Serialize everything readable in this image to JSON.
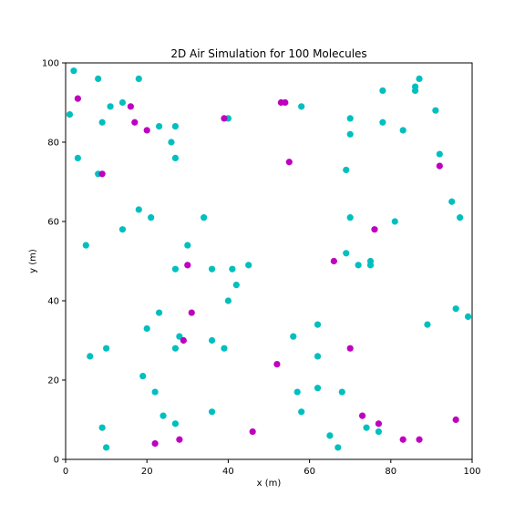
{
  "chart_data": {
    "type": "scatter",
    "title": "2D Air Simulation for 100 Molecules",
    "xlabel": "x (m)",
    "ylabel": "y (m)",
    "xlim": [
      0,
      100
    ],
    "ylim": [
      0,
      100
    ],
    "xticks": [
      "0",
      "20",
      "40",
      "60",
      "80",
      "100"
    ],
    "yticks": [
      "0",
      "20",
      "40",
      "60",
      "80",
      "100"
    ],
    "grid": false,
    "legend": "none",
    "series": [
      {
        "color": "#00bfbf",
        "points": [
          [
            2,
            98
          ],
          [
            8,
            96
          ],
          [
            18,
            96
          ],
          [
            1,
            87
          ],
          [
            14,
            90
          ],
          [
            11,
            89
          ],
          [
            9,
            85
          ],
          [
            23,
            84
          ],
          [
            27,
            84
          ],
          [
            26,
            80
          ],
          [
            3,
            76
          ],
          [
            27,
            76
          ],
          [
            8,
            72
          ],
          [
            40,
            86
          ],
          [
            58,
            89
          ],
          [
            70,
            86
          ],
          [
            70,
            82
          ],
          [
            78,
            93
          ],
          [
            78,
            85
          ],
          [
            83,
            83
          ],
          [
            86,
            94
          ],
          [
            86,
            93
          ],
          [
            87,
            96
          ],
          [
            91,
            88
          ],
          [
            92,
            77
          ],
          [
            69,
            73
          ],
          [
            18,
            63
          ],
          [
            21,
            61
          ],
          [
            34,
            61
          ],
          [
            14,
            58
          ],
          [
            5,
            54
          ],
          [
            30,
            54
          ],
          [
            27,
            48
          ],
          [
            36,
            48
          ],
          [
            41,
            48
          ],
          [
            45,
            49
          ],
          [
            42,
            44
          ],
          [
            40,
            40
          ],
          [
            70,
            61
          ],
          [
            81,
            60
          ],
          [
            95,
            65
          ],
          [
            97,
            61
          ],
          [
            69,
            52
          ],
          [
            72,
            49
          ],
          [
            75,
            50
          ],
          [
            75,
            49
          ],
          [
            23,
            37
          ],
          [
            20,
            33
          ],
          [
            28,
            31
          ],
          [
            27,
            28
          ],
          [
            36,
            30
          ],
          [
            39,
            28
          ],
          [
            6,
            26
          ],
          [
            10,
            28
          ],
          [
            19,
            21
          ],
          [
            22,
            17
          ],
          [
            24,
            11
          ],
          [
            27,
            9
          ],
          [
            36,
            12
          ],
          [
            9,
            8
          ],
          [
            10,
            3
          ],
          [
            56,
            31
          ],
          [
            62,
            34
          ],
          [
            62,
            26
          ],
          [
            57,
            17
          ],
          [
            62,
            18
          ],
          [
            58,
            12
          ],
          [
            68,
            17
          ],
          [
            65,
            6
          ],
          [
            67,
            3
          ],
          [
            74,
            8
          ],
          [
            77,
            7
          ],
          [
            89,
            34
          ],
          [
            96,
            38
          ],
          [
            99,
            36
          ]
        ]
      },
      {
        "color": "#bf00bf",
        "points": [
          [
            3,
            91
          ],
          [
            16,
            89
          ],
          [
            17,
            85
          ],
          [
            20,
            83
          ],
          [
            9,
            72
          ],
          [
            39,
            86
          ],
          [
            53,
            90
          ],
          [
            54,
            90
          ],
          [
            55,
            75
          ],
          [
            92,
            74
          ],
          [
            76,
            58
          ],
          [
            66,
            50
          ],
          [
            30,
            49
          ],
          [
            31,
            37
          ],
          [
            29,
            30
          ],
          [
            70,
            28
          ],
          [
            52,
            24
          ],
          [
            46,
            7
          ],
          [
            22,
            4
          ],
          [
            28,
            5
          ],
          [
            73,
            11
          ],
          [
            77,
            9
          ],
          [
            83,
            5
          ],
          [
            87,
            5
          ],
          [
            96,
            10
          ]
        ]
      }
    ]
  }
}
